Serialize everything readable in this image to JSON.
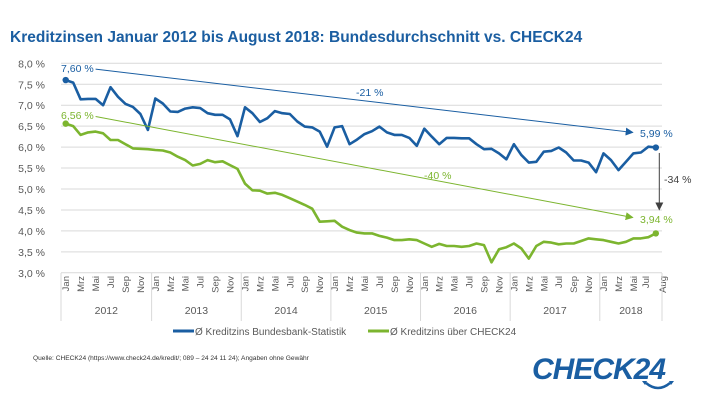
{
  "chart_data": {
    "type": "line",
    "title": "Kreditzinsen Januar 2012 bis August 2018: Bundesdurchschnitt vs. CHECK24",
    "xlabel": "",
    "ylabel": "",
    "ylim": [
      3.0,
      8.0
    ],
    "yticks": [
      "3,0 %",
      "3,5 %",
      "4,0 %",
      "4,5 %",
      "5,0 %",
      "5,5 %",
      "6,0 %",
      "6,5 %",
      "7,0 %",
      "7,5 %",
      "8,0 %"
    ],
    "ytick_values": [
      3.0,
      3.5,
      4.0,
      4.5,
      5.0,
      5.5,
      6.0,
      6.5,
      7.0,
      7.5,
      8.0
    ],
    "grid": true,
    "legend_placement": "bottom",
    "month_labels": [
      "Jan",
      "Mrz",
      "Mai",
      "Jul",
      "Sep",
      "Nov"
    ],
    "month_labels_2018": [
      "Jan",
      "Mrz",
      "Mai",
      "Jul",
      "Aug"
    ],
    "years": [
      "2012",
      "2013",
      "2014",
      "2015",
      "2016",
      "2017",
      "2018"
    ],
    "x_start": "2012-01",
    "x_end": "2018-08",
    "series": [
      {
        "name": "Ø Kreditzins Bundesbank-Statistik",
        "color": "#1a5ea2",
        "values": [
          7.6,
          7.54,
          7.14,
          7.15,
          7.15,
          7.0,
          7.43,
          7.2,
          7.03,
          6.96,
          6.79,
          6.41,
          7.16,
          7.04,
          6.85,
          6.84,
          6.92,
          6.95,
          6.93,
          6.81,
          6.77,
          6.77,
          6.66,
          6.26,
          6.95,
          6.81,
          6.6,
          6.69,
          6.86,
          6.81,
          6.79,
          6.61,
          6.49,
          6.47,
          6.37,
          6.01,
          6.47,
          6.5,
          6.07,
          6.18,
          6.31,
          6.38,
          6.49,
          6.35,
          6.29,
          6.29,
          6.22,
          6.03,
          6.44,
          6.25,
          6.07,
          6.22,
          6.22,
          6.21,
          6.21,
          6.07,
          5.95,
          5.96,
          5.85,
          5.71,
          6.07,
          5.81,
          5.63,
          5.65,
          5.89,
          5.91,
          5.99,
          5.87,
          5.68,
          5.68,
          5.63,
          5.4,
          5.85,
          5.69,
          5.45,
          5.65,
          5.85,
          5.87,
          6.01,
          5.99
        ]
      },
      {
        "name": "Ø Kreditzins über CHECK24",
        "color": "#7cb52f",
        "values": [
          6.56,
          6.5,
          6.29,
          6.35,
          6.37,
          6.33,
          6.17,
          6.17,
          6.07,
          5.97,
          5.96,
          5.95,
          5.93,
          5.92,
          5.87,
          5.77,
          5.69,
          5.56,
          5.6,
          5.69,
          5.64,
          5.66,
          5.57,
          5.48,
          5.13,
          4.97,
          4.96,
          4.89,
          4.91,
          4.86,
          4.78,
          4.7,
          4.62,
          4.53,
          4.22,
          4.23,
          4.24,
          4.1,
          4.02,
          3.96,
          3.94,
          3.94,
          3.88,
          3.84,
          3.78,
          3.78,
          3.8,
          3.78,
          3.7,
          3.62,
          3.69,
          3.64,
          3.64,
          3.62,
          3.64,
          3.7,
          3.66,
          3.25,
          3.56,
          3.61,
          3.7,
          3.58,
          3.34,
          3.64,
          3.74,
          3.72,
          3.68,
          3.7,
          3.7,
          3.76,
          3.82,
          3.8,
          3.78,
          3.74,
          3.7,
          3.74,
          3.82,
          3.82,
          3.85,
          3.94
        ]
      }
    ],
    "annotations": {
      "blue_start": "7,60 %",
      "blue_end": "5,99 %",
      "blue_change": "-21 %",
      "green_start": "6,56 %",
      "green_end": "3,94 %",
      "green_change": "-40 %",
      "gap_change": "-34 %"
    }
  },
  "source": "Quelle: CHECK24 (https://www.check24.de/kredit/; 089 – 24 24 11 24); Angaben ohne Gewähr",
  "logo": {
    "text": "CHECK24",
    "color": "#1a5ea2"
  },
  "colors": {
    "grid": "#d9d9d9",
    "axis_text": "#595959",
    "gap_arrow": "#404040"
  }
}
